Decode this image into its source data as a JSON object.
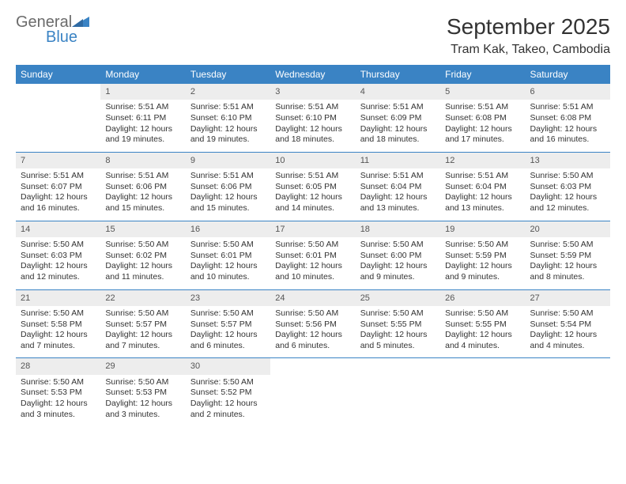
{
  "logo": {
    "text1": "General",
    "text2": "Blue"
  },
  "title": "September 2025",
  "location": "Tram Kak, Takeo, Cambodia",
  "weekday_labels": [
    "Sunday",
    "Monday",
    "Tuesday",
    "Wednesday",
    "Thursday",
    "Friday",
    "Saturday"
  ],
  "colors": {
    "header_bg": "#3a83c4",
    "header_text": "#ffffff",
    "daynum_bg": "#ededed",
    "border": "#3a83c4",
    "text": "#333333",
    "logo_gray": "#6b6b6b",
    "logo_blue": "#3a83c4"
  },
  "weeks": [
    {
      "days": [
        {
          "n": "",
          "sunrise": "",
          "sunset": "",
          "daylight": ""
        },
        {
          "n": "1",
          "sunrise": "Sunrise: 5:51 AM",
          "sunset": "Sunset: 6:11 PM",
          "daylight": "Daylight: 12 hours and 19 minutes."
        },
        {
          "n": "2",
          "sunrise": "Sunrise: 5:51 AM",
          "sunset": "Sunset: 6:10 PM",
          "daylight": "Daylight: 12 hours and 19 minutes."
        },
        {
          "n": "3",
          "sunrise": "Sunrise: 5:51 AM",
          "sunset": "Sunset: 6:10 PM",
          "daylight": "Daylight: 12 hours and 18 minutes."
        },
        {
          "n": "4",
          "sunrise": "Sunrise: 5:51 AM",
          "sunset": "Sunset: 6:09 PM",
          "daylight": "Daylight: 12 hours and 18 minutes."
        },
        {
          "n": "5",
          "sunrise": "Sunrise: 5:51 AM",
          "sunset": "Sunset: 6:08 PM",
          "daylight": "Daylight: 12 hours and 17 minutes."
        },
        {
          "n": "6",
          "sunrise": "Sunrise: 5:51 AM",
          "sunset": "Sunset: 6:08 PM",
          "daylight": "Daylight: 12 hours and 16 minutes."
        }
      ]
    },
    {
      "days": [
        {
          "n": "7",
          "sunrise": "Sunrise: 5:51 AM",
          "sunset": "Sunset: 6:07 PM",
          "daylight": "Daylight: 12 hours and 16 minutes."
        },
        {
          "n": "8",
          "sunrise": "Sunrise: 5:51 AM",
          "sunset": "Sunset: 6:06 PM",
          "daylight": "Daylight: 12 hours and 15 minutes."
        },
        {
          "n": "9",
          "sunrise": "Sunrise: 5:51 AM",
          "sunset": "Sunset: 6:06 PM",
          "daylight": "Daylight: 12 hours and 15 minutes."
        },
        {
          "n": "10",
          "sunrise": "Sunrise: 5:51 AM",
          "sunset": "Sunset: 6:05 PM",
          "daylight": "Daylight: 12 hours and 14 minutes."
        },
        {
          "n": "11",
          "sunrise": "Sunrise: 5:51 AM",
          "sunset": "Sunset: 6:04 PM",
          "daylight": "Daylight: 12 hours and 13 minutes."
        },
        {
          "n": "12",
          "sunrise": "Sunrise: 5:51 AM",
          "sunset": "Sunset: 6:04 PM",
          "daylight": "Daylight: 12 hours and 13 minutes."
        },
        {
          "n": "13",
          "sunrise": "Sunrise: 5:50 AM",
          "sunset": "Sunset: 6:03 PM",
          "daylight": "Daylight: 12 hours and 12 minutes."
        }
      ]
    },
    {
      "days": [
        {
          "n": "14",
          "sunrise": "Sunrise: 5:50 AM",
          "sunset": "Sunset: 6:03 PM",
          "daylight": "Daylight: 12 hours and 12 minutes."
        },
        {
          "n": "15",
          "sunrise": "Sunrise: 5:50 AM",
          "sunset": "Sunset: 6:02 PM",
          "daylight": "Daylight: 12 hours and 11 minutes."
        },
        {
          "n": "16",
          "sunrise": "Sunrise: 5:50 AM",
          "sunset": "Sunset: 6:01 PM",
          "daylight": "Daylight: 12 hours and 10 minutes."
        },
        {
          "n": "17",
          "sunrise": "Sunrise: 5:50 AM",
          "sunset": "Sunset: 6:01 PM",
          "daylight": "Daylight: 12 hours and 10 minutes."
        },
        {
          "n": "18",
          "sunrise": "Sunrise: 5:50 AM",
          "sunset": "Sunset: 6:00 PM",
          "daylight": "Daylight: 12 hours and 9 minutes."
        },
        {
          "n": "19",
          "sunrise": "Sunrise: 5:50 AM",
          "sunset": "Sunset: 5:59 PM",
          "daylight": "Daylight: 12 hours and 9 minutes."
        },
        {
          "n": "20",
          "sunrise": "Sunrise: 5:50 AM",
          "sunset": "Sunset: 5:59 PM",
          "daylight": "Daylight: 12 hours and 8 minutes."
        }
      ]
    },
    {
      "days": [
        {
          "n": "21",
          "sunrise": "Sunrise: 5:50 AM",
          "sunset": "Sunset: 5:58 PM",
          "daylight": "Daylight: 12 hours and 7 minutes."
        },
        {
          "n": "22",
          "sunrise": "Sunrise: 5:50 AM",
          "sunset": "Sunset: 5:57 PM",
          "daylight": "Daylight: 12 hours and 7 minutes."
        },
        {
          "n": "23",
          "sunrise": "Sunrise: 5:50 AM",
          "sunset": "Sunset: 5:57 PM",
          "daylight": "Daylight: 12 hours and 6 minutes."
        },
        {
          "n": "24",
          "sunrise": "Sunrise: 5:50 AM",
          "sunset": "Sunset: 5:56 PM",
          "daylight": "Daylight: 12 hours and 6 minutes."
        },
        {
          "n": "25",
          "sunrise": "Sunrise: 5:50 AM",
          "sunset": "Sunset: 5:55 PM",
          "daylight": "Daylight: 12 hours and 5 minutes."
        },
        {
          "n": "26",
          "sunrise": "Sunrise: 5:50 AM",
          "sunset": "Sunset: 5:55 PM",
          "daylight": "Daylight: 12 hours and 4 minutes."
        },
        {
          "n": "27",
          "sunrise": "Sunrise: 5:50 AM",
          "sunset": "Sunset: 5:54 PM",
          "daylight": "Daylight: 12 hours and 4 minutes."
        }
      ]
    },
    {
      "days": [
        {
          "n": "28",
          "sunrise": "Sunrise: 5:50 AM",
          "sunset": "Sunset: 5:53 PM",
          "daylight": "Daylight: 12 hours and 3 minutes."
        },
        {
          "n": "29",
          "sunrise": "Sunrise: 5:50 AM",
          "sunset": "Sunset: 5:53 PM",
          "daylight": "Daylight: 12 hours and 3 minutes."
        },
        {
          "n": "30",
          "sunrise": "Sunrise: 5:50 AM",
          "sunset": "Sunset: 5:52 PM",
          "daylight": "Daylight: 12 hours and 2 minutes."
        },
        {
          "n": "",
          "sunrise": "",
          "sunset": "",
          "daylight": ""
        },
        {
          "n": "",
          "sunrise": "",
          "sunset": "",
          "daylight": ""
        },
        {
          "n": "",
          "sunrise": "",
          "sunset": "",
          "daylight": ""
        },
        {
          "n": "",
          "sunrise": "",
          "sunset": "",
          "daylight": ""
        }
      ]
    }
  ]
}
